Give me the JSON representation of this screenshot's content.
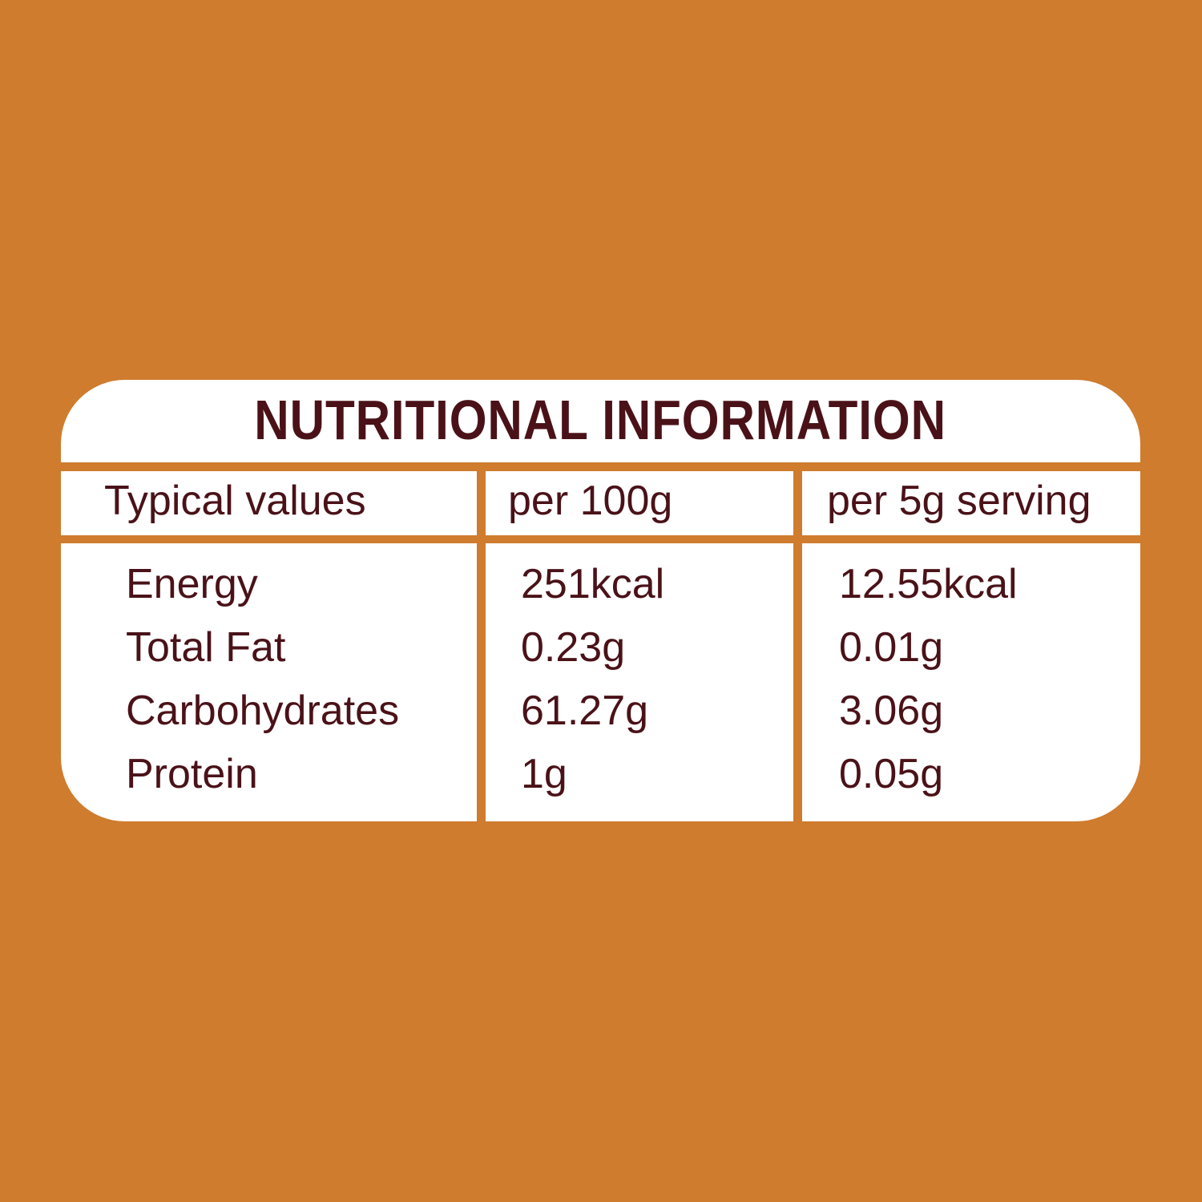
{
  "title": "NUTRITIONAL INFORMATION",
  "headers": [
    "Typical values",
    "per 100g",
    "per 5g serving"
  ],
  "rows": [
    {
      "name": "Energy",
      "per100": "251kcal",
      "perServing": "12.55kcal"
    },
    {
      "name": "Total Fat",
      "per100": "0.23g",
      "perServing": "0.01g"
    },
    {
      "name": "Carbohydrates",
      "per100": "61.27g",
      "perServing": "3.06g"
    },
    {
      "name": "Protein",
      "per100": "1g",
      "perServing": "0.05g"
    }
  ],
  "colors": {
    "background": "#CF7C2E",
    "text": "#4a1218",
    "panel": "#ffffff"
  }
}
